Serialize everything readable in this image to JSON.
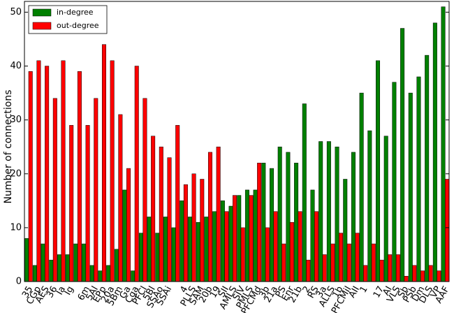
{
  "chart_data": {
    "type": "bar",
    "y_label": "Number of connections",
    "categories": [
      "35",
      "CGp",
      "AES",
      "36",
      "Ia",
      "Ig",
      null,
      "6m",
      "5Al",
      "EPp",
      "20a",
      "5Bm",
      "Ga",
      "Cga",
      "PFCl",
      "5Bl",
      "SSAo",
      "SSAi",
      null,
      "4",
      "PLLS",
      "SAM",
      "20b",
      "19",
      "SII",
      "AMLS",
      "SIV",
      "PMLS",
      "PFCMd",
      "3b",
      "21a",
      "PS",
      "Enr",
      "21b",
      "2",
      "RS",
      "3a",
      "ALLS",
      "1b",
      "PFCMil",
      "AII",
      "1",
      null,
      "17",
      "AI",
      "VLS",
      "Sb",
      "PSb",
      "Dm",
      "DLS",
      "VP",
      "AAF"
    ],
    "series": [
      {
        "name": "in-degree",
        "color": "#008000",
        "values": [
          8,
          3,
          7,
          4,
          5,
          5,
          7,
          7,
          3,
          2,
          3,
          6,
          17,
          2,
          9,
          12,
          9,
          12,
          10,
          15,
          12,
          11,
          12,
          13,
          15,
          14,
          16,
          17,
          17,
          22,
          21,
          25,
          24,
          22,
          33,
          17,
          26,
          26,
          25,
          19,
          24,
          35,
          28,
          41,
          27,
          37,
          47,
          35,
          38,
          42,
          48,
          51
        ]
      },
      {
        "name": "out-degree",
        "color": "#ff0000",
        "values": [
          39,
          41,
          40,
          34,
          41,
          29,
          39,
          29,
          34,
          44,
          41,
          31,
          21,
          40,
          34,
          27,
          25,
          23,
          29,
          18,
          20,
          19,
          24,
          25,
          13,
          16,
          10,
          16,
          22,
          10,
          13,
          7,
          11,
          13,
          4,
          13,
          5,
          7,
          9,
          7,
          9,
          3,
          7,
          4,
          5,
          5,
          1,
          3,
          2,
          3,
          2,
          19
        ]
      }
    ],
    "ylim": [
      0,
      52
    ],
    "yticks": [
      0,
      10,
      20,
      30,
      40,
      50
    ],
    "grid": false,
    "legend": "upper left"
  }
}
